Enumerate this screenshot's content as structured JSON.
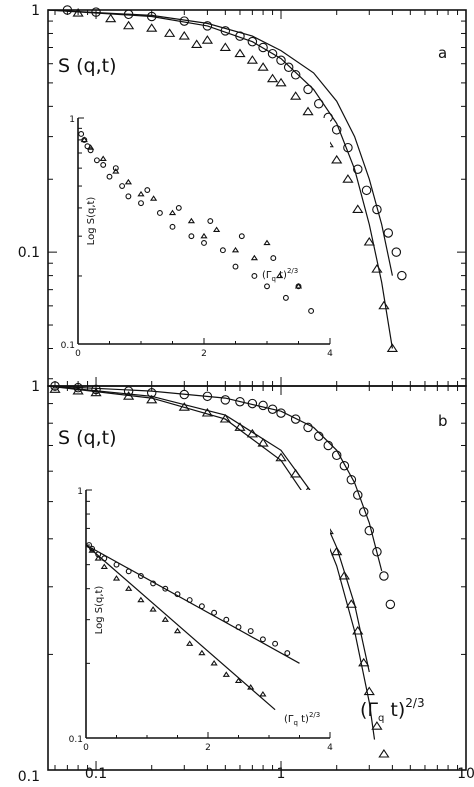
{
  "figure": {
    "outer_axis": {
      "xlabel": "(Γq t)2/3",
      "xlabel_main": "(Γ",
      "xlabel_sub": "q",
      "xlabel_mid": " t)",
      "xlabel_sup": "2/3",
      "xscale": "log",
      "xlim": [
        0.055,
        10
      ],
      "xticks": [
        {
          "value": 0.1,
          "label": "0.1"
        },
        {
          "value": 1,
          "label": "1"
        },
        {
          "value": 10,
          "label": "10"
        }
      ]
    },
    "panels": [
      {
        "letter": "a",
        "ylabel": "S (q,t)",
        "yscale": "log",
        "ylim": [
          0.028,
          1
        ],
        "yticks": [
          {
            "value": 1,
            "label": "1"
          },
          {
            "value": 0.1,
            "label": "0.1"
          }
        ],
        "inset": {
          "ylabel": "Log S(q,t)",
          "xlabel": "(Γq t)2/3",
          "xlabel_main": "(Γ",
          "xlabel_sub": "q",
          "xlabel_mid": " t)",
          "xlabel_sup": "2/3",
          "xlim": [
            0,
            4
          ],
          "ylim": [
            0.1,
            1
          ],
          "xticks": [
            {
              "value": 0,
              "label": "0"
            },
            {
              "value": 2,
              "label": "2"
            },
            {
              "value": 4,
              "label": "4"
            }
          ],
          "yticks": [
            {
              "value": 1,
              "label": "1"
            },
            {
              "value": 0.1,
              "label": "0.1"
            }
          ]
        }
      },
      {
        "letter": "b",
        "ylabel": "S (q,t)",
        "yscale": "log",
        "ylim": [
          0.1,
          1
        ],
        "yticks": [
          {
            "value": 1,
            "label": "1"
          },
          {
            "value": 0.1,
            "label": "0.1"
          }
        ],
        "inset": {
          "ylabel": "Log S(q,t)",
          "xlabel": "(Γq t)2/3",
          "xlabel_main": "(Γ",
          "xlabel_sub": "q",
          "xlabel_mid": " t)",
          "xlabel_sup": "2/3",
          "xlim": [
            0,
            4
          ],
          "ylim": [
            0.1,
            1
          ],
          "xticks": [
            {
              "value": 0,
              "label": "0"
            },
            {
              "value": 2,
              "label": "2"
            },
            {
              "value": 4,
              "label": "4"
            }
          ],
          "yticks": [
            {
              "value": 1,
              "label": "1"
            },
            {
              "value": 0.1,
              "label": "0.1"
            }
          ]
        }
      }
    ]
  },
  "chart_data": [
    {
      "type": "scatter",
      "panel": "a",
      "xscale": "log",
      "yscale": "log",
      "xlim": [
        0.055,
        10
      ],
      "ylim": [
        0.028,
        1
      ],
      "series": [
        {
          "marker": "circle",
          "x": [
            0.07,
            0.1,
            0.15,
            0.2,
            0.3,
            0.4,
            0.5,
            0.6,
            0.7,
            0.8,
            0.9,
            1.0,
            1.1,
            1.2,
            1.4,
            1.6,
            1.8,
            2.0,
            2.3,
            2.6,
            2.9,
            3.3,
            3.8,
            4.2,
            4.5
          ],
          "y": [
            1.0,
            0.98,
            0.96,
            0.94,
            0.9,
            0.86,
            0.82,
            0.78,
            0.74,
            0.7,
            0.66,
            0.62,
            0.58,
            0.54,
            0.47,
            0.41,
            0.36,
            0.32,
            0.27,
            0.22,
            0.18,
            0.15,
            0.12,
            0.1,
            0.08
          ]
        },
        {
          "marker": "triangle",
          "x": [
            0.08,
            0.12,
            0.15,
            0.2,
            0.25,
            0.3,
            0.35,
            0.4,
            0.5,
            0.6,
            0.7,
            0.8,
            0.9,
            1.0,
            1.2,
            1.4,
            1.6,
            1.8,
            2.0,
            2.3,
            2.6,
            3.0,
            3.3,
            3.6,
            4.0
          ],
          "y": [
            0.97,
            0.92,
            0.86,
            0.84,
            0.8,
            0.78,
            0.72,
            0.75,
            0.7,
            0.66,
            0.62,
            0.58,
            0.52,
            0.5,
            0.44,
            0.38,
            0.33,
            0.28,
            0.24,
            0.2,
            0.15,
            0.11,
            0.085,
            0.06,
            0.04
          ]
        }
      ],
      "fit_lines": [
        {
          "x": [
            0.055,
            0.2,
            0.4,
            0.7,
            1.0,
            1.5,
            2.0,
            2.5,
            3.0,
            3.5,
            4.0
          ],
          "y": [
            1.0,
            0.95,
            0.88,
            0.78,
            0.68,
            0.55,
            0.42,
            0.3,
            0.2,
            0.13,
            0.08
          ]
        },
        {
          "x": [
            0.055,
            0.2,
            0.4,
            0.7,
            1.0,
            1.5,
            2.0,
            2.5,
            3.0,
            3.5,
            4.0
          ],
          "y": [
            1.0,
            0.94,
            0.86,
            0.74,
            0.63,
            0.47,
            0.34,
            0.22,
            0.13,
            0.075,
            0.04
          ]
        }
      ],
      "inset": {
        "type": "scatter",
        "xlim": [
          0,
          4
        ],
        "ylim": [
          0.1,
          1
        ],
        "series": [
          {
            "marker": "circle",
            "x": [
              0.05,
              0.1,
              0.15,
              0.2,
              0.3,
              0.4,
              0.5,
              0.6,
              0.7,
              0.8,
              1.0,
              1.1,
              1.3,
              1.5,
              1.6,
              1.8,
              2.0,
              2.1,
              2.3,
              2.5,
              2.6,
              2.8,
              3.0,
              3.1,
              3.3,
              3.5,
              3.7
            ],
            "y": [
              0.85,
              0.8,
              0.75,
              0.72,
              0.65,
              0.62,
              0.55,
              0.6,
              0.5,
              0.45,
              0.42,
              0.48,
              0.38,
              0.33,
              0.4,
              0.3,
              0.28,
              0.35,
              0.26,
              0.22,
              0.3,
              0.2,
              0.18,
              0.24,
              0.16,
              0.18,
              0.14
            ]
          },
          {
            "marker": "triangle",
            "x": [
              0.1,
              0.2,
              0.4,
              0.6,
              0.8,
              1.0,
              1.2,
              1.5,
              1.8,
              2.0,
              2.2,
              2.5,
              2.8,
              3.0,
              3.2,
              3.5
            ],
            "y": [
              0.8,
              0.74,
              0.66,
              0.58,
              0.52,
              0.46,
              0.44,
              0.38,
              0.35,
              0.3,
              0.32,
              0.26,
              0.24,
              0.28,
              0.2,
              0.18
            ]
          }
        ]
      }
    },
    {
      "type": "scatter",
      "panel": "b",
      "xscale": "log",
      "yscale": "log",
      "xlim": [
        0.055,
        10
      ],
      "ylim": [
        0.1,
        1
      ],
      "series": [
        {
          "marker": "circle",
          "x": [
            0.06,
            0.08,
            0.1,
            0.15,
            0.2,
            0.3,
            0.4,
            0.5,
            0.6,
            0.7,
            0.8,
            0.9,
            1.0,
            1.2,
            1.4,
            1.6,
            1.8,
            2.0,
            2.2,
            2.4,
            2.6,
            2.8,
            3.0,
            3.3,
            3.6,
            3.9
          ],
          "y": [
            1.0,
            0.99,
            0.98,
            0.97,
            0.96,
            0.95,
            0.94,
            0.92,
            0.91,
            0.9,
            0.89,
            0.87,
            0.85,
            0.82,
            0.78,
            0.74,
            0.7,
            0.66,
            0.62,
            0.57,
            0.52,
            0.47,
            0.42,
            0.37,
            0.32,
            0.27
          ]
        },
        {
          "marker": "triangle",
          "x": [
            0.06,
            0.08,
            0.1,
            0.15,
            0.2,
            0.3,
            0.4,
            0.5,
            0.6,
            0.7,
            0.8,
            1.0,
            1.2,
            1.4,
            1.6,
            1.8,
            2.0,
            2.2,
            2.4,
            2.6,
            2.8,
            3.0,
            3.3,
            3.6
          ],
          "y": [
            0.98,
            0.97,
            0.96,
            0.94,
            0.92,
            0.88,
            0.85,
            0.82,
            0.78,
            0.75,
            0.71,
            0.65,
            0.59,
            0.53,
            0.47,
            0.42,
            0.37,
            0.32,
            0.27,
            0.23,
            0.19,
            0.16,
            0.13,
            0.11
          ]
        }
      ],
      "fit_lines": [
        {
          "x": [
            0.055,
            0.2,
            0.5,
            1.0,
            1.5,
            2.0,
            2.5,
            3.0,
            3.5
          ],
          "y": [
            1.0,
            0.97,
            0.93,
            0.86,
            0.78,
            0.68,
            0.56,
            0.44,
            0.33
          ]
        },
        {
          "x": [
            0.055,
            0.2,
            0.5,
            1.0,
            1.5,
            2.0,
            2.5,
            3.0
          ],
          "y": [
            1.0,
            0.94,
            0.84,
            0.68,
            0.52,
            0.38,
            0.27,
            0.18
          ]
        },
        {
          "x": [
            0.055,
            0.2,
            0.5,
            1.0,
            1.5,
            2.0,
            2.5,
            3.0,
            3.2
          ],
          "y": [
            1.0,
            0.93,
            0.82,
            0.64,
            0.48,
            0.34,
            0.23,
            0.15,
            0.12
          ]
        }
      ],
      "inset": {
        "type": "scatter",
        "xlim": [
          0,
          4
        ],
        "ylim": [
          0.1,
          1
        ],
        "series": [
          {
            "marker": "circle",
            "x": [
              0.05,
              0.1,
              0.2,
              0.3,
              0.5,
              0.7,
              0.9,
              1.1,
              1.3,
              1.5,
              1.7,
              1.9,
              2.1,
              2.3,
              2.5,
              2.7,
              2.9,
              3.1,
              3.3
            ],
            "y": [
              0.6,
              0.58,
              0.55,
              0.53,
              0.5,
              0.47,
              0.45,
              0.42,
              0.4,
              0.38,
              0.36,
              0.34,
              0.32,
              0.3,
              0.28,
              0.27,
              0.25,
              0.24,
              0.22
            ]
          },
          {
            "marker": "triangle",
            "x": [
              0.1,
              0.2,
              0.3,
              0.5,
              0.7,
              0.9,
              1.1,
              1.3,
              1.5,
              1.7,
              1.9,
              2.1,
              2.3,
              2.5,
              2.7,
              2.9
            ],
            "y": [
              0.57,
              0.53,
              0.49,
              0.44,
              0.4,
              0.36,
              0.33,
              0.3,
              0.27,
              0.24,
              0.22,
              0.2,
              0.18,
              0.17,
              0.16,
              0.15
            ]
          }
        ],
        "fit_lines": [
          {
            "x": [
              0,
              3.5
            ],
            "y": [
              0.6,
              0.2
            ]
          },
          {
            "x": [
              0,
              3.1
            ],
            "y": [
              0.6,
              0.13
            ]
          }
        ]
      }
    }
  ]
}
